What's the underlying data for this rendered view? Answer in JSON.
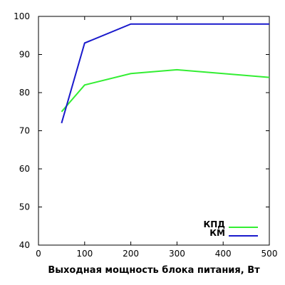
{
  "chart_data": {
    "type": "line",
    "title": "",
    "xlabel": "Выходная мощность блока питания, Вт",
    "ylabel": "",
    "xlim": [
      0,
      500
    ],
    "ylim": [
      40,
      100
    ],
    "xticks": [
      0,
      100,
      200,
      300,
      400,
      500
    ],
    "yticks": [
      40,
      50,
      60,
      70,
      80,
      90,
      100
    ],
    "grid": false,
    "legend_position": "bottom-right",
    "series": [
      {
        "name": "КПД",
        "color": "#33ee33",
        "x": [
          50,
          100,
          200,
          300,
          400,
          500
        ],
        "values": [
          75,
          82,
          85,
          86,
          85,
          84
        ]
      },
      {
        "name": "КМ",
        "color": "#1a1acc",
        "x": [
          50,
          100,
          200,
          300,
          400,
          500
        ],
        "values": [
          72,
          93,
          98,
          98,
          98,
          98
        ]
      }
    ]
  }
}
